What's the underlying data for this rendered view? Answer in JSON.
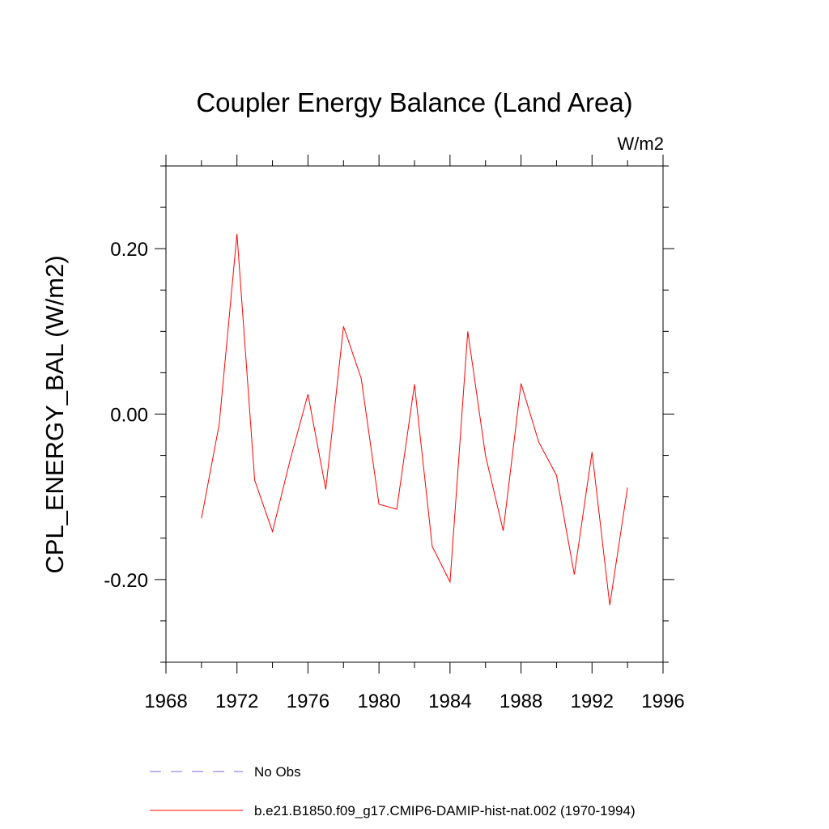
{
  "colors": {
    "series": "#ff0000",
    "obs": "#7b68ee",
    "axis": "#000000"
  },
  "chart_data": {
    "type": "line",
    "title": "Coupler Energy Balance (Land Area)",
    "units": "W/m2",
    "xlabel": "",
    "ylabel": "CPL_ENERGY_BAL  (W/m2)",
    "xlim": [
      1968,
      1996
    ],
    "ylim": [
      -0.3,
      0.3
    ],
    "x_ticks": [
      1968,
      1972,
      1976,
      1980,
      1984,
      1988,
      1992,
      1996
    ],
    "x_tick_labels": [
      "1968",
      "1972",
      "1976",
      "1980",
      "1984",
      "1988",
      "1992",
      "1996"
    ],
    "y_ticks": [
      -0.2,
      0.0,
      0.2
    ],
    "y_tick_labels": [
      "-0.20",
      "0.00",
      "0.20"
    ],
    "grid": false,
    "legend_position": "bottom",
    "series": [
      {
        "name": "b.e21.B1850.f09_g17.CMIP6-DAMIP-hist-nat.002 (1970-1994)",
        "color": "#ff0000",
        "style": "solid",
        "x": [
          1970,
          1971,
          1972,
          1973,
          1974,
          1975,
          1976,
          1977,
          1978,
          1979,
          1980,
          1981,
          1982,
          1983,
          1984,
          1985,
          1986,
          1987,
          1988,
          1989,
          1990,
          1991,
          1992,
          1993,
          1994
        ],
        "y": [
          -0.126,
          -0.012,
          0.218,
          -0.08,
          -0.142,
          -0.055,
          0.024,
          -0.091,
          0.106,
          0.043,
          -0.109,
          -0.115,
          0.036,
          -0.16,
          -0.203,
          0.1,
          -0.05,
          -0.141,
          0.037,
          -0.034,
          -0.074,
          -0.194,
          -0.046,
          -0.231,
          -0.089
        ]
      }
    ],
    "legend": [
      {
        "label": "No Obs",
        "style": "dashed",
        "color": "#7b68ee"
      },
      {
        "label": "b.e21.B1850.f09_g17.CMIP6-DAMIP-hist-nat.002 (1970-1994)",
        "style": "solid",
        "color": "#ff0000"
      }
    ]
  }
}
